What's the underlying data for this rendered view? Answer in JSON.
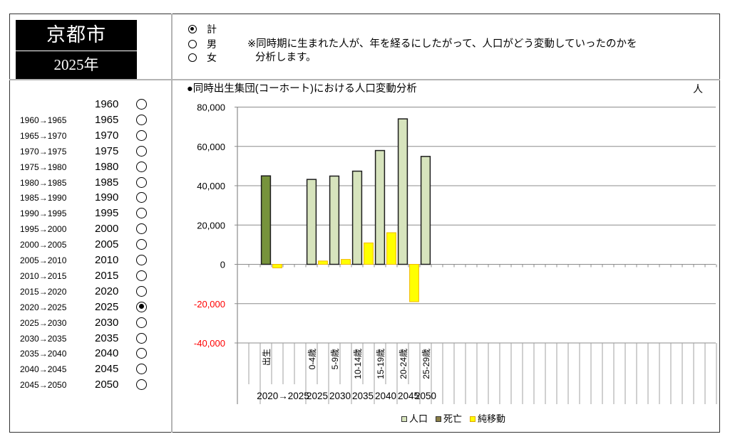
{
  "header": {
    "city": "京都市",
    "year": "2025年"
  },
  "gender_options": [
    {
      "label": "計",
      "selected": true
    },
    {
      "label": "男",
      "selected": false
    },
    {
      "label": "女",
      "selected": false
    }
  ],
  "note": {
    "line1": "※同時期に生まれた人が、年を経るにしたがって、人口がどう変動していったのかを",
    "line2": "分析します。"
  },
  "year_list": [
    {
      "period": "",
      "year": "1960",
      "selected": false
    },
    {
      "period": "1960→1965",
      "year": "1965",
      "selected": false
    },
    {
      "period": "1965→1970",
      "year": "1970",
      "selected": false
    },
    {
      "period": "1970→1975",
      "year": "1975",
      "selected": false
    },
    {
      "period": "1975→1980",
      "year": "1980",
      "selected": false
    },
    {
      "period": "1980→1985",
      "year": "1985",
      "selected": false
    },
    {
      "period": "1985→1990",
      "year": "1990",
      "selected": false
    },
    {
      "period": "1990→1995",
      "year": "1995",
      "selected": false
    },
    {
      "period": "1995→2000",
      "year": "2000",
      "selected": false
    },
    {
      "period": "2000→2005",
      "year": "2005",
      "selected": false
    },
    {
      "period": "2005→2010",
      "year": "2010",
      "selected": false
    },
    {
      "period": "2010→2015",
      "year": "2015",
      "selected": false
    },
    {
      "period": "2015→2020",
      "year": "2020",
      "selected": false
    },
    {
      "period": "2020→2025",
      "year": "2025",
      "selected": true
    },
    {
      "period": "2025→2030",
      "year": "2030",
      "selected": false
    },
    {
      "period": "2030→2035",
      "year": "2035",
      "selected": false
    },
    {
      "period": "2035→2040",
      "year": "2040",
      "selected": false
    },
    {
      "period": "2040→2045",
      "year": "2045",
      "selected": false
    },
    {
      "period": "2045→2050",
      "year": "2050",
      "selected": false
    }
  ],
  "chart_data": {
    "type": "bar",
    "title": "●同時出生集団(コーホート)における人口変動分析",
    "unit": "人",
    "xlabel": "",
    "ylabel": "",
    "ylim": [
      -40000,
      80000
    ],
    "grid": true,
    "legend_position": "bottom",
    "yticks": [
      80000,
      60000,
      40000,
      20000,
      0,
      -20000,
      -40000
    ],
    "ytick_labels": [
      "80,000",
      "60,000",
      "40,000",
      "20,000",
      "0",
      "-20,000",
      "-40,000"
    ],
    "negative_tick_color": "#ff0000",
    "categories": [
      "",
      "",
      "出生",
      "",
      "",
      "",
      "0-4歳",
      "",
      "5-9歳",
      "",
      "10-14歳",
      "",
      "15-19歳",
      "",
      "20-24歳",
      "",
      "25-29歳",
      "",
      "",
      "",
      "",
      "",
      "",
      "",
      "",
      "",
      "",
      "",
      "",
      "",
      "",
      "",
      "",
      "",
      "",
      "",
      "",
      "",
      "",
      "",
      "",
      ""
    ],
    "category_groups": [
      {
        "label": "",
        "span": 2
      },
      {
        "label": "2020→2025",
        "span": 4
      },
      {
        "label": "2025",
        "span": 2
      },
      {
        "label": "2030",
        "span": 2
      },
      {
        "label": "2035",
        "span": 2
      },
      {
        "label": "2040",
        "span": 2
      },
      {
        "label": "2045",
        "span": 2
      },
      {
        "label": "2050",
        "span": 1
      },
      {
        "label": "",
        "span": 1
      },
      {
        "label": "",
        "span": 1
      },
      {
        "label": "",
        "span": 1
      },
      {
        "label": "",
        "span": 1
      },
      {
        "label": "",
        "span": 1
      },
      {
        "label": "",
        "span": 1
      },
      {
        "label": "",
        "span": 1
      },
      {
        "label": "",
        "span": 1
      },
      {
        "label": "",
        "span": 1
      },
      {
        "label": "",
        "span": 1
      },
      {
        "label": "",
        "span": 1
      },
      {
        "label": "",
        "span": 1
      },
      {
        "label": "",
        "span": 1
      },
      {
        "label": "",
        "span": 1
      },
      {
        "label": "",
        "span": 1
      },
      {
        "label": "",
        "span": 1
      },
      {
        "label": "",
        "span": 1
      },
      {
        "label": "",
        "span": 1
      },
      {
        "label": "",
        "span": 1
      },
      {
        "label": "",
        "span": 1
      },
      {
        "label": "",
        "span": 1
      },
      {
        "label": "",
        "span": 1
      },
      {
        "label": "",
        "span": 1
      },
      {
        "label": "",
        "span": 1
      },
      {
        "label": "",
        "span": 1
      }
    ],
    "series": [
      {
        "name": "人口",
        "key": "population",
        "color": "#d7e4bd",
        "border": "#1e1e1e",
        "point_colors": {
          "2": "#77933c"
        },
        "values": [
          null,
          null,
          45000,
          null,
          null,
          null,
          43200,
          null,
          44900,
          null,
          47400,
          null,
          57900,
          null,
          74000,
          null,
          54900,
          null,
          null,
          null,
          null,
          null,
          null,
          null,
          null,
          null,
          null,
          null,
          null,
          null,
          null,
          null,
          null,
          null,
          null,
          null,
          null,
          null,
          null,
          null,
          null,
          null
        ]
      },
      {
        "name": "死亡",
        "key": "deaths",
        "color": "#8a7f48",
        "border": "#1e1e1e",
        "values": [
          null,
          null,
          null,
          null,
          null,
          null,
          null,
          null,
          null,
          null,
          null,
          null,
          null,
          null,
          null,
          null,
          null,
          null,
          null,
          null,
          null,
          null,
          null,
          null,
          null,
          null,
          null,
          null,
          null,
          null,
          null,
          null,
          null,
          null,
          null,
          null,
          null,
          null,
          null,
          null,
          null,
          null
        ]
      },
      {
        "name": "純移動",
        "key": "net-migration",
        "color": "#ffff00",
        "border": "#f2b800",
        "values": [
          null,
          null,
          null,
          -1800,
          null,
          null,
          null,
          1700,
          null,
          2500,
          null,
          10900,
          null,
          16100,
          null,
          -19000,
          null,
          null,
          null,
          null,
          null,
          null,
          null,
          null,
          null,
          null,
          null,
          null,
          null,
          null,
          null,
          null,
          null,
          null,
          null,
          null,
          null,
          null,
          null,
          null,
          null,
          null
        ]
      }
    ]
  },
  "legend": [
    {
      "label": "人口",
      "color": "#d7e4bd"
    },
    {
      "label": "死亡",
      "color": "#8a7f48"
    },
    {
      "label": "純移動",
      "color": "#ffff00"
    }
  ]
}
